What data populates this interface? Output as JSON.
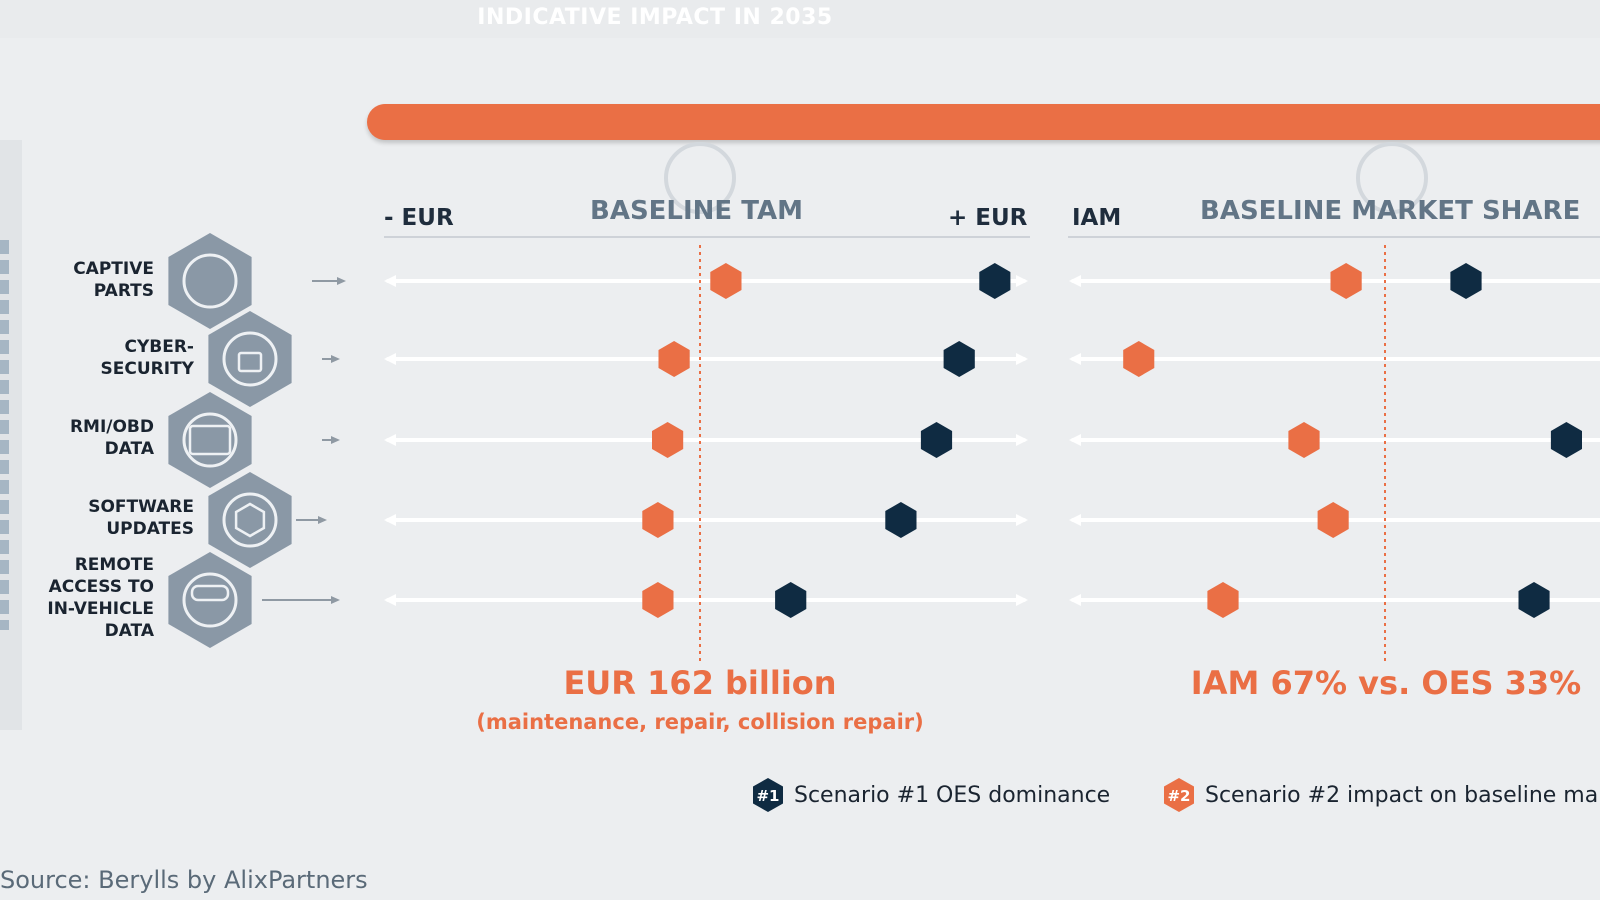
{
  "colors": {
    "accent": "#ea6f45",
    "dark": "#0f2b42",
    "icon_hex": "#8a98a6",
    "track": "#ffffff",
    "muted_text": "#627586"
  },
  "banner_title": "INDICATIVE IMPACT IN 2035",
  "tam_panel": {
    "title": "BASELINE TAM",
    "left_label": "- EUR",
    "right_label": "+ EUR",
    "summary_main": "EUR 162 billion",
    "summary_sub": "(maintenance, repair, collision repair)"
  },
  "share_panel": {
    "title": "BASELINE MARKET SHARE",
    "left_label": "IAM",
    "summary_main": "IAM 67% vs. OES 33%"
  },
  "categories": [
    {
      "label": "CAPTIVE\nPARTS",
      "icon": "gear-circle-icon"
    },
    {
      "label": "CYBER-\nSECURITY",
      "icon": "padlock-icon"
    },
    {
      "label": "RMI/OBD\nDATA",
      "icon": "updated-document-icon"
    },
    {
      "label": "SOFTWARE\nUPDATES",
      "icon": "circuit-cube-icon"
    },
    {
      "label": "REMOTE\nACCESS TO\nIN-VEHICLE\nDATA",
      "icon": "car-data-icon"
    }
  ],
  "chart_data": [
    {
      "type": "scatter",
      "title": "BASELINE TAM",
      "xlabel_left": "- EUR",
      "xlabel_right": "+ EUR",
      "xlim": [
        -1,
        1
      ],
      "baseline": 0,
      "categories": [
        "CAPTIVE PARTS",
        "CYBER-SECURITY",
        "RMI/OBD DATA",
        "SOFTWARE UPDATES",
        "REMOTE ACCESS TO IN-VEHICLE DATA"
      ],
      "series": [
        {
          "name": "Scenario #2 impact on baseline ma",
          "values": [
            0.08,
            -0.08,
            -0.1,
            -0.13,
            -0.13
          ]
        },
        {
          "name": "Scenario #1 OES dominance",
          "values": [
            0.91,
            0.8,
            0.73,
            0.62,
            0.28
          ]
        }
      ]
    },
    {
      "type": "scatter",
      "title": "BASELINE MARKET SHARE",
      "xlabel_left": "IAM",
      "xlim": [
        -1,
        1
      ],
      "baseline": 0,
      "categories": [
        "CAPTIVE PARTS",
        "CYBER-SECURITY",
        "RMI/OBD DATA",
        "SOFTWARE UPDATES",
        "REMOTE ACCESS TO IN-VEHICLE DATA"
      ],
      "series": [
        {
          "name": "Scenario #2 impact on baseline ma",
          "values": [
            -0.12,
            -0.76,
            -0.25,
            -0.16,
            -0.5
          ]
        },
        {
          "name": "Scenario #1 OES dominance",
          "values": [
            0.25,
            null,
            0.56,
            null,
            0.46
          ]
        }
      ]
    }
  ],
  "legend": {
    "items": [
      {
        "badge": "#1",
        "label": "Scenario #1 OES dominance",
        "color": "#0f2b42"
      },
      {
        "badge": "#2",
        "label": "Scenario #2 impact on baseline ma",
        "color": "#ea6f45"
      }
    ]
  },
  "source": "Source: Berylls by AlixPartners"
}
